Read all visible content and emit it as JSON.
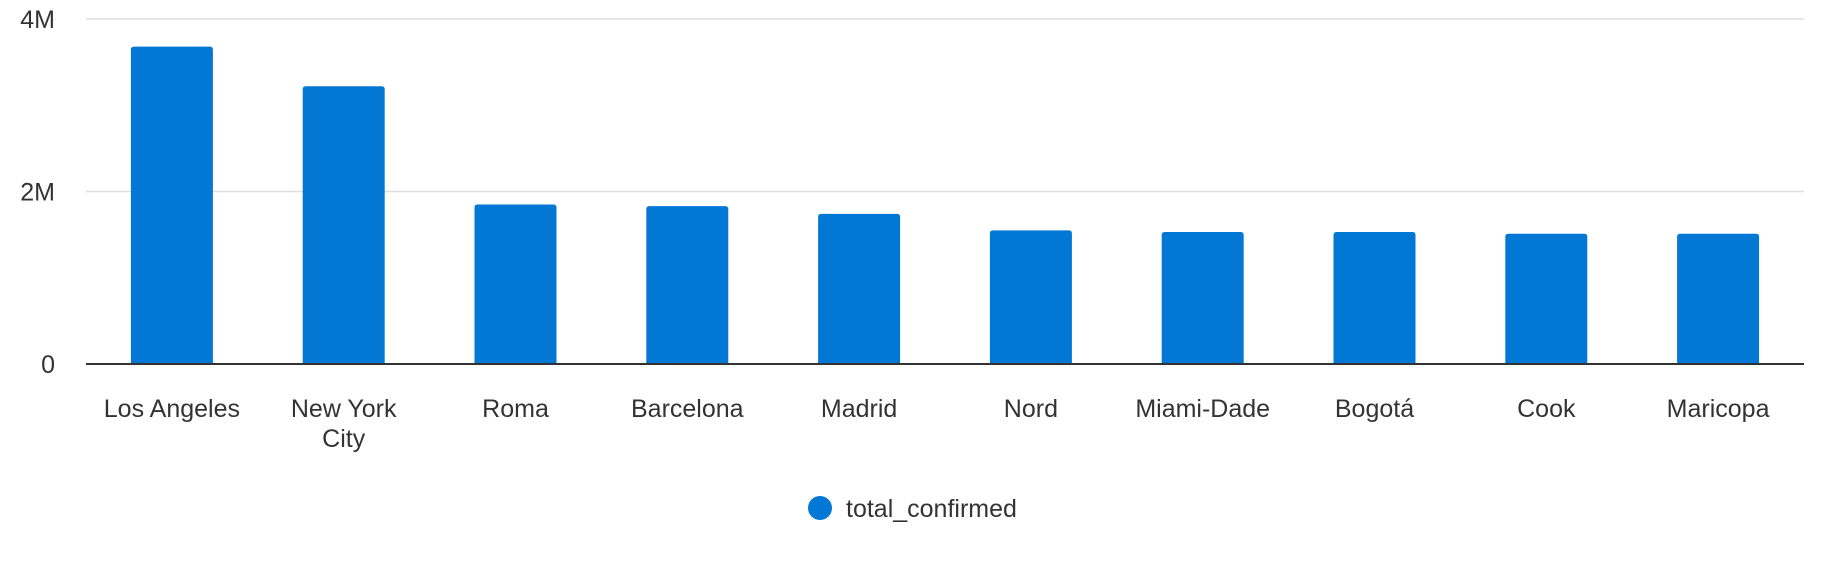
{
  "chart_data": {
    "type": "bar",
    "categories": [
      "Los Angeles",
      "New York City",
      "Roma",
      "Barcelona",
      "Madrid",
      "Nord",
      "Miami-Dade",
      "Bogotá",
      "Cook",
      "Maricopa"
    ],
    "category_lines": [
      [
        "Los Angeles"
      ],
      [
        "New York",
        "City"
      ],
      [
        "Roma"
      ],
      [
        "Barcelona"
      ],
      [
        "Madrid"
      ],
      [
        "Nord"
      ],
      [
        "Miami-Dade"
      ],
      [
        "Bogotá"
      ],
      [
        "Cook"
      ],
      [
        "Maricopa"
      ]
    ],
    "series": [
      {
        "name": "total_confirmed",
        "values": [
          3680000,
          3220000,
          1850000,
          1830000,
          1740000,
          1550000,
          1530000,
          1530000,
          1510000,
          1510000
        ]
      }
    ],
    "y_ticks": [
      {
        "value": 0,
        "label": "0"
      },
      {
        "value": 2000000,
        "label": "2M"
      },
      {
        "value": 4000000,
        "label": "4M"
      }
    ],
    "ylim": [
      0,
      4000000
    ],
    "grid": true,
    "legend_position": "bottom-center",
    "bar_color": "#0377d4",
    "gridline_color": "#dedede",
    "axis_color": "#333333",
    "text_color": "#333333"
  }
}
